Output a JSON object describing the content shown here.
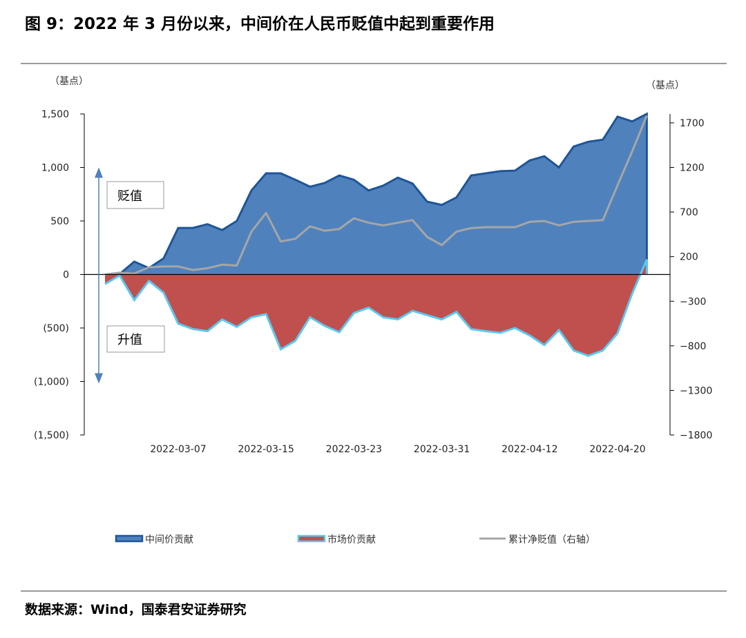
{
  "chart_data": {
    "type": "area",
    "title": "图 9：2022 年 3 月份以来，中间价在人民币贬值中起到重要作用",
    "source": "数据来源：Wind，国泰君安证券研究",
    "y_unit": "（基点）",
    "y2_unit": "（基点）",
    "annotations": [
      "贬值",
      "升值"
    ],
    "categories": [
      null,
      null,
      null,
      null,
      null,
      "2022-03-07",
      null,
      null,
      null,
      null,
      null,
      "2022-03-15",
      null,
      null,
      null,
      null,
      null,
      "2022-03-23",
      null,
      null,
      null,
      null,
      null,
      "2022-03-31",
      null,
      null,
      null,
      null,
      null,
      "2022-04-12",
      null,
      null,
      null,
      null,
      null,
      "2022-04-20",
      null,
      null
    ],
    "ylim": [
      -1500,
      1500
    ],
    "yticks": [
      {
        "value": 1500,
        "label": "1,500"
      },
      {
        "value": 1000,
        "label": "1,000"
      },
      500,
      0,
      {
        "value": -500,
        "label": "(500)"
      },
      {
        "value": -1000,
        "label": "(1,000)"
      },
      {
        "value": -1500,
        "label": "(1,500)"
      }
    ],
    "y2lim": [
      -1800,
      1800
    ],
    "y2ticks": [
      1700,
      1200,
      700,
      200,
      {
        "value": -300,
        "label": "−300"
      },
      {
        "value": -800,
        "label": "−800"
      },
      {
        "value": -1300,
        "label": "−1300"
      },
      {
        "value": -1800,
        "label": "−1800"
      }
    ],
    "series": [
      {
        "name": "中间价贡献",
        "type": "area",
        "color": "#4f81bd",
        "edge": "#1f5597",
        "values": [
          0,
          5,
          120,
          60,
          150,
          435,
          435,
          470,
          415,
          500,
          785,
          945,
          945,
          885,
          820,
          855,
          925,
          885,
          785,
          830,
          905,
          850,
          680,
          650,
          720,
          925,
          945,
          965,
          970,
          1065,
          1105,
          1000,
          1195,
          1240,
          1260,
          1475,
          1430,
          1500
        ]
      },
      {
        "name": "市场价贡献",
        "type": "area",
        "color": "#c0504d",
        "edge": "#5bc8f0",
        "values": [
          -90,
          -10,
          -240,
          -60,
          -170,
          -460,
          -510,
          -530,
          -420,
          -490,
          -400,
          -370,
          -700,
          -620,
          -400,
          -480,
          -540,
          -360,
          -310,
          -400,
          -420,
          -340,
          -380,
          -420,
          -350,
          -510,
          -530,
          -545,
          -500,
          -570,
          -660,
          -520,
          -710,
          -760,
          -710,
          -550,
          -180,
          140
        ]
      },
      {
        "name": "累计净贬值（右轴）",
        "type": "line",
        "axis": "y2",
        "color": "#a6a6a6",
        "values": [
          0,
          20,
          10,
          80,
          90,
          90,
          50,
          70,
          110,
          100,
          480,
          690,
          370,
          400,
          540,
          490,
          510,
          630,
          580,
          550,
          580,
          610,
          420,
          330,
          480,
          520,
          530,
          530,
          530,
          590,
          600,
          550,
          590,
          600,
          610,
          1000,
          1380,
          1780
        ]
      }
    ]
  }
}
